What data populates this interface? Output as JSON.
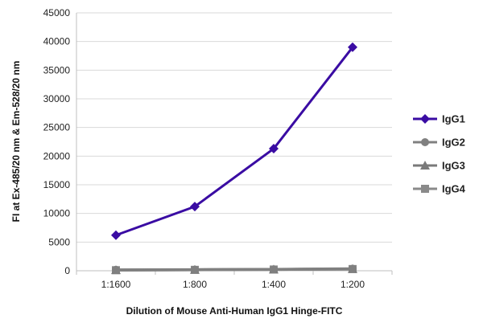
{
  "chart_data": {
    "type": "line",
    "title": "",
    "xlabel": "Dilution of Mouse Anti-Human IgG1 Hinge-FITC",
    "ylabel": "FI at Ex-485/20 nm & Em-528/20 nm",
    "categories": [
      "1:1600",
      "1:800",
      "1:400",
      "1:200"
    ],
    "ylim": [
      0,
      45000
    ],
    "yticks": [
      0,
      5000,
      10000,
      15000,
      20000,
      25000,
      30000,
      35000,
      40000,
      45000
    ],
    "grid": true,
    "legend_position": "right",
    "series": [
      {
        "name": "IgG1",
        "values": [
          6200,
          11200,
          21300,
          39000
        ],
        "color": "#3a0ca3",
        "marker": "diamond"
      },
      {
        "name": "IgG2",
        "values": [
          150,
          200,
          250,
          350
        ],
        "color": "#808080",
        "marker": "circle"
      },
      {
        "name": "IgG3",
        "values": [
          120,
          180,
          230,
          320
        ],
        "color": "#7a7a7a",
        "marker": "triangle"
      },
      {
        "name": "IgG4",
        "values": [
          100,
          160,
          220,
          300
        ],
        "color": "#8a8a8a",
        "marker": "square"
      }
    ]
  }
}
